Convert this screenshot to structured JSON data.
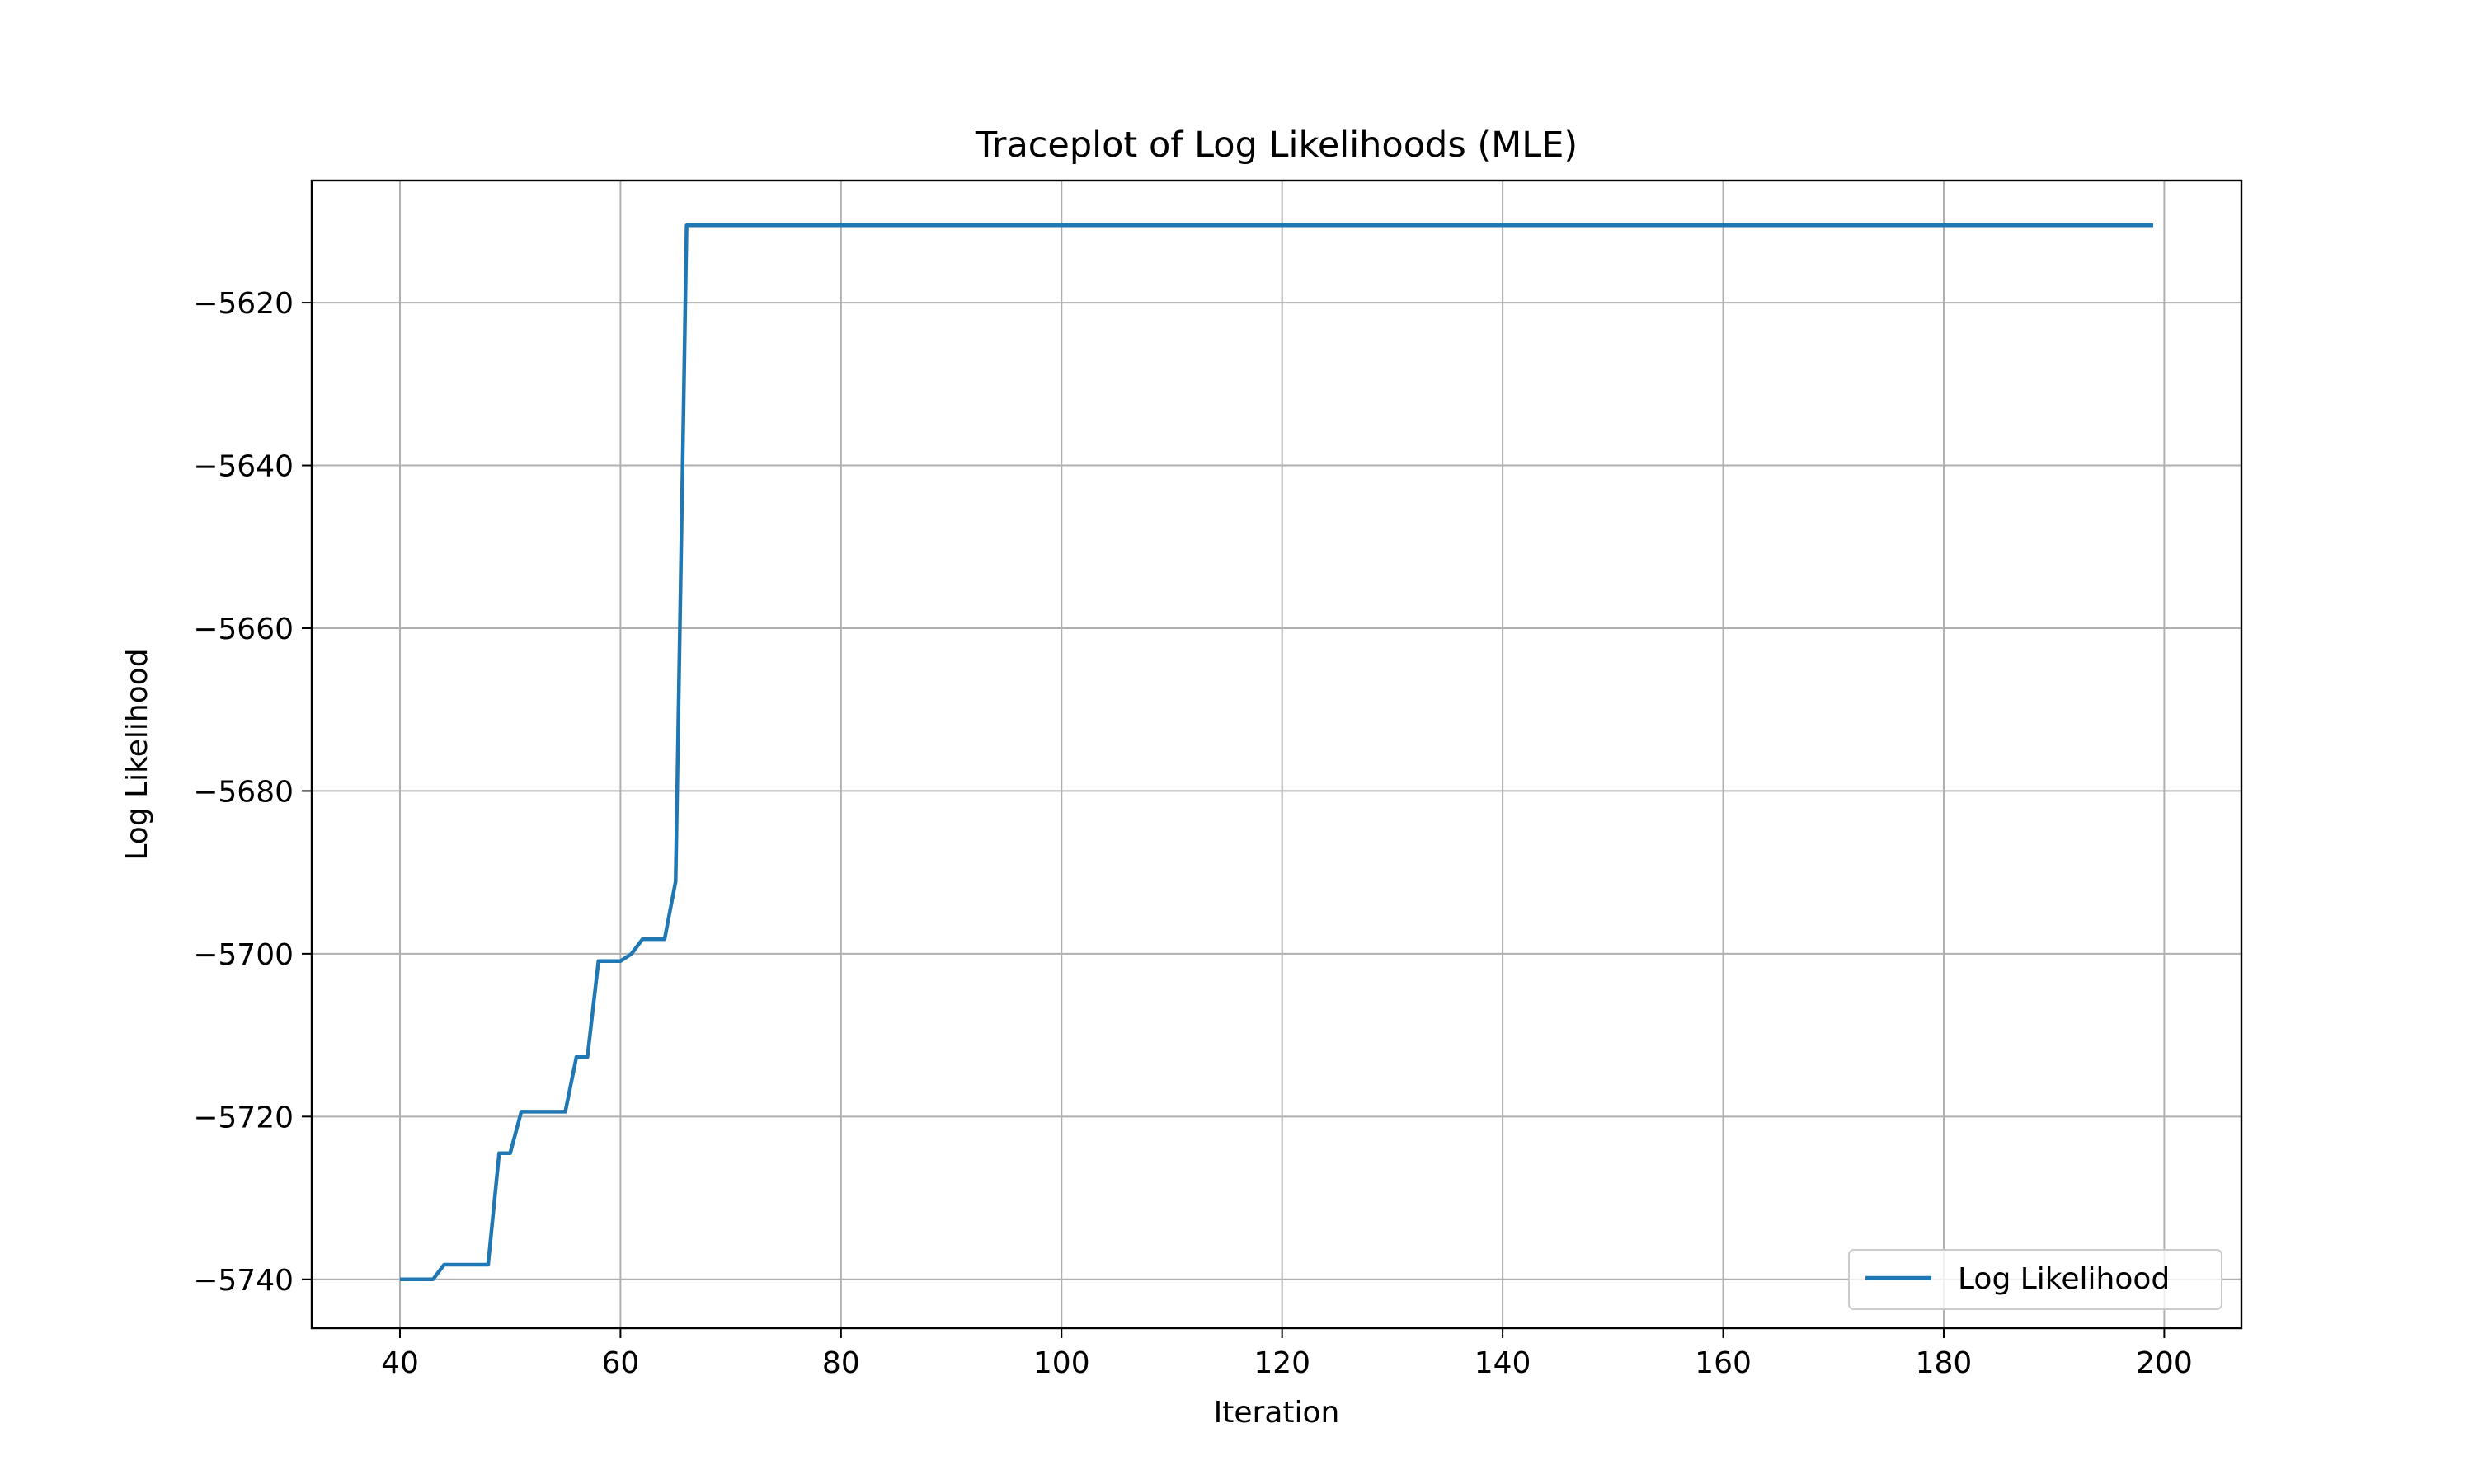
{
  "chart_data": {
    "type": "line",
    "title": "Traceplot of Log Likelihoods (MLE)",
    "xlabel": "Iteration",
    "ylabel": "Log Likelihood",
    "xlim": [
      32,
      207
    ],
    "ylim": [
      -5746,
      -5605
    ],
    "xticks": [
      40,
      60,
      80,
      100,
      120,
      140,
      160,
      180,
      200
    ],
    "yticks": [
      -5740,
      -5720,
      -5700,
      -5680,
      -5660,
      -5640,
      -5620
    ],
    "grid": true,
    "legend_position": "lower-right",
    "series": [
      {
        "name": "Log Likelihood",
        "color": "#1f77b4",
        "points": [
          [
            40,
            -5740.0
          ],
          [
            41,
            -5740.0
          ],
          [
            42,
            -5740.0
          ],
          [
            43,
            -5740.0
          ],
          [
            44,
            -5738.2
          ],
          [
            45,
            -5738.2
          ],
          [
            46,
            -5738.2
          ],
          [
            47,
            -5738.2
          ],
          [
            48,
            -5738.2
          ],
          [
            49,
            -5724.5
          ],
          [
            50,
            -5724.5
          ],
          [
            51,
            -5719.4
          ],
          [
            52,
            -5719.4
          ],
          [
            53,
            -5719.4
          ],
          [
            54,
            -5719.4
          ],
          [
            55,
            -5719.4
          ],
          [
            56,
            -5712.7
          ],
          [
            57,
            -5712.7
          ],
          [
            58,
            -5700.9
          ],
          [
            59,
            -5700.9
          ],
          [
            60,
            -5700.9
          ],
          [
            61,
            -5700.0
          ],
          [
            62,
            -5698.2
          ],
          [
            63,
            -5698.2
          ],
          [
            64,
            -5698.2
          ],
          [
            65,
            -5691.1
          ],
          [
            66,
            -5610.5
          ],
          [
            199,
            -5610.5
          ]
        ]
      }
    ]
  }
}
